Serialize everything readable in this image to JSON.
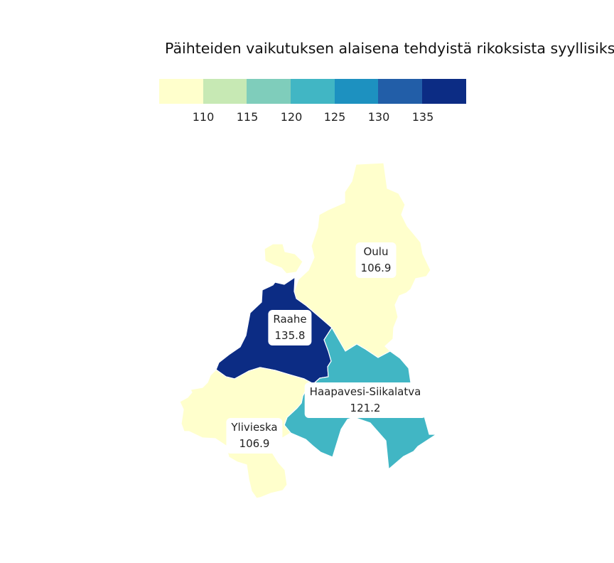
{
  "title": "Päihteiden vaikutuksen alaisena tehdyistä rikoksista syyllisiks",
  "legend": {
    "colors": [
      "#ffffcc",
      "#c7e9b4",
      "#7fcdbb",
      "#41b6c4",
      "#1d91c0",
      "#225ea8",
      "#0c2c84"
    ],
    "ticks": [
      "110",
      "115",
      "120",
      "125",
      "130",
      "135"
    ]
  },
  "regions": [
    {
      "name": "Oulu",
      "value": "106.9",
      "color": "#ffffcc"
    },
    {
      "name": "Raahe",
      "value": "135.8",
      "color": "#0c2c84"
    },
    {
      "name": "Haapavesi-Siikalatva",
      "value": "121.2",
      "color": "#41b6c4"
    },
    {
      "name": "Ylivieska",
      "value": "106.9",
      "color": "#ffffcc"
    }
  ]
}
